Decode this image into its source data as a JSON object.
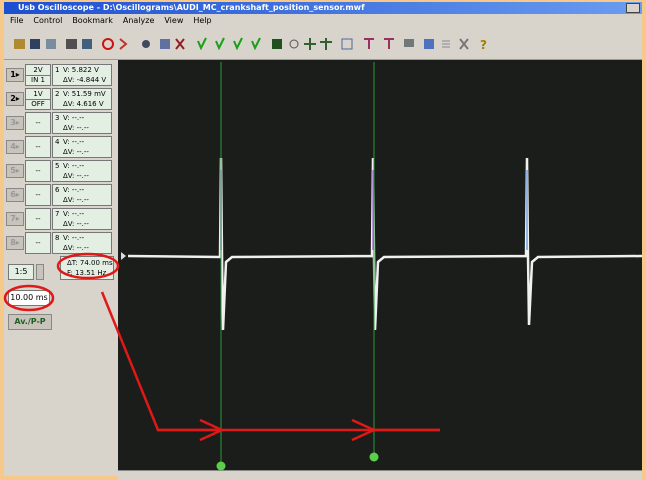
{
  "window": {
    "title": "Usb Oscilloscope - D:\\Oscillograms\\AUDI_MC_crankshaft_position_sensor.mwf"
  },
  "menu": [
    "File",
    "Control",
    "Bookmark",
    "Analyze",
    "View",
    "Help"
  ],
  "channels": [
    {
      "button": "1▸",
      "scale": "2V",
      "input": "IN 1",
      "number": "1",
      "v": "V: 5.822 V",
      "dv": "ΔV: -4.844 V"
    },
    {
      "button": "2▸",
      "scale": "1V",
      "input": "OFF",
      "number": "2",
      "v": "V: 51.59 mV",
      "dv": "ΔV: 4.616 V"
    },
    {
      "button": "3▸",
      "scale": "--",
      "number": "3",
      "v": "V: --.--",
      "dv": "ΔV: --.--"
    },
    {
      "button": "4▸",
      "scale": "--",
      "number": "4",
      "v": "V: --.--",
      "dv": "ΔV: --.--"
    },
    {
      "button": "5▸",
      "scale": "--",
      "number": "5",
      "v": "V: --.--",
      "dv": "ΔV: --.--"
    },
    {
      "button": "6▸",
      "scale": "--",
      "number": "6",
      "v": "V: --.--",
      "dv": "ΔV: --.--"
    },
    {
      "button": "7▸",
      "scale": "--",
      "number": "7",
      "v": "V: --.--",
      "dv": "ΔV: --.--"
    },
    {
      "button": "8▸",
      "scale": "--",
      "number": "8",
      "v": "V: --.--",
      "dv": "ΔV: --.--"
    }
  ],
  "timebase": {
    "zoom": "1:5",
    "time_div": "10.00 ms",
    "mode": "Av./P-P"
  },
  "cursor_readout": {
    "dt": "ΔT: 74.00 ms",
    "f": "F: 13.51 Hz"
  }
}
